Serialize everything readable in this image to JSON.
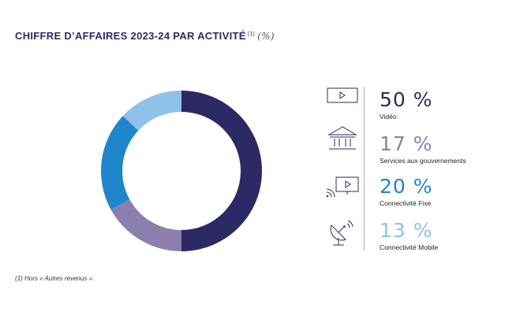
{
  "title": {
    "text": "CHIFFRE D’AFFAIRES 2023-24 PAR ACTIVITÉ",
    "footnote_marker": "(1)",
    "unit": "(%)"
  },
  "footnote": "(1)   Hors « Autres revenus ».",
  "colors": {
    "video": "#2b2a64",
    "gov": "#8b80ad",
    "fixe": "#1f86c9",
    "mobile": "#8fc1e9",
    "divider": "#c9a4b6"
  },
  "chart_data": {
    "type": "pie",
    "title": "CHIFFRE D’AFFAIRES 2023-24 PAR ACTIVITÉ (%)",
    "categories": [
      "Vidéo",
      "Services aux gouvernements",
      "Connectivité Fixe",
      "Connectivité Mobile"
    ],
    "values": [
      50,
      17,
      20,
      13
    ],
    "value_labels": [
      "50 %",
      "17 %",
      "20 %",
      "13 %"
    ],
    "series_colors": [
      "#2b2a64",
      "#8b80ad",
      "#1f86c9",
      "#8fc1e9"
    ],
    "donut": true,
    "legend_position": "right"
  },
  "legend": [
    {
      "value": "50 %",
      "label": "Vidéo",
      "icon": "video-player-icon",
      "color": "#2b2a64"
    },
    {
      "value": "17 %",
      "label": "Services aux gouvernements",
      "icon": "government-building-icon",
      "color": "#8b80ad"
    },
    {
      "value": "20 %",
      "label": "Connectivité Fixe",
      "icon": "fixed-connectivity-screen-icon",
      "color": "#1f86c9"
    },
    {
      "value": "13 %",
      "label": "Connectivité Mobile",
      "icon": "satellite-dish-icon",
      "color": "#8fc1e9"
    }
  ]
}
